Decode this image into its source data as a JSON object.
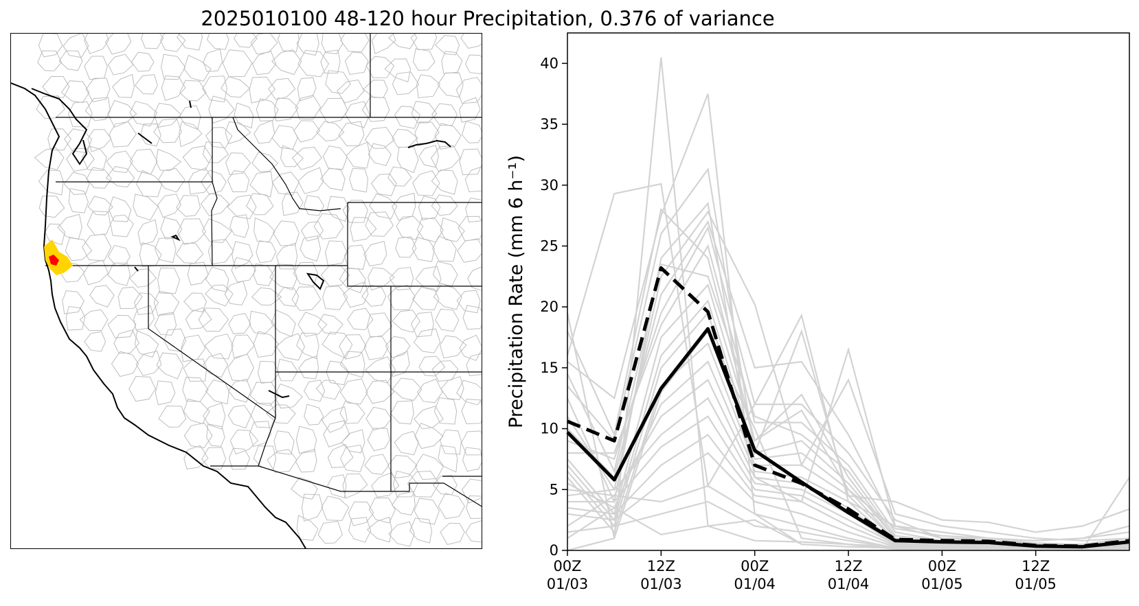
{
  "title": "2025010100 48-120 hour Precipitation, 0.376 of variance",
  "map": {
    "region": "Western United States",
    "basin_outline_color": "#bdbdbd",
    "state_line_color": "#000000",
    "highlight_colors": [
      "#ffd400",
      "#ff0000"
    ]
  },
  "chart_data": {
    "type": "line",
    "title": "2025010100 48-120 hour Precipitation, 0.376 of variance",
    "xlabel": "",
    "ylabel": "Precipitation Rate (mm 6 h⁻¹)",
    "ylim": [
      0,
      42.5
    ],
    "yticks": [
      0,
      5,
      10,
      15,
      20,
      25,
      30,
      35,
      40
    ],
    "x": [
      0,
      6,
      12,
      18,
      24,
      30,
      36,
      42,
      48,
      54,
      60,
      66,
      72
    ],
    "xlim": [
      0,
      72
    ],
    "xtick_positions": [
      0,
      12,
      24,
      36,
      48,
      60
    ],
    "xtick_labels": [
      [
        "00Z",
        "01/03"
      ],
      [
        "12Z",
        "01/03"
      ],
      [
        "00Z",
        "01/04"
      ],
      [
        "12Z",
        "01/04"
      ],
      [
        "00Z",
        "01/05"
      ],
      [
        "12Z",
        "01/05"
      ]
    ],
    "grid": false,
    "legend": "none",
    "ensemble_color": "#d3d3d3",
    "ensemble_members": [
      [
        19.5,
        1.0,
        40.5,
        2.0,
        2.5,
        0.5,
        0.3,
        0.2,
        0.1,
        0.1,
        0.1,
        0.1,
        0.3
      ],
      [
        16.0,
        29.3,
        30.1,
        5.3,
        12.0,
        19.3,
        4.0,
        2.0,
        1.5,
        1.0,
        0.8,
        1.0,
        1.5
      ],
      [
        15.5,
        12.5,
        27.5,
        37.5,
        3.0,
        0.5,
        0.3,
        0.2,
        0.1,
        0.1,
        0.1,
        0.1,
        6.0
      ],
      [
        13.5,
        9.0,
        26.0,
        31.3,
        8.0,
        18.0,
        4.5,
        4.0,
        2.5,
        2.3,
        1.5,
        2.0,
        3.4
      ],
      [
        12.5,
        4.0,
        24.0,
        28.5,
        6.0,
        4.0,
        16.5,
        2.0,
        1.0,
        1.0,
        0.5,
        0.5,
        1.0
      ],
      [
        11.0,
        5.0,
        22.5,
        27.8,
        20.2,
        7.0,
        14.0,
        3.0,
        2.0,
        1.5,
        1.0,
        0.8,
        1.0
      ],
      [
        10.0,
        6.0,
        21.0,
        27.0,
        15.0,
        15.5,
        9.5,
        2.0,
        1.5,
        1.0,
        0.8,
        1.0,
        2.0
      ],
      [
        9.0,
        7.5,
        19.5,
        26.5,
        12.0,
        12.0,
        8.0,
        2.5,
        1.0,
        0.8,
        0.5,
        0.5,
        1.0
      ],
      [
        8.0,
        8.0,
        18.5,
        25.0,
        10.5,
        10.5,
        7.0,
        1.5,
        0.8,
        0.6,
        0.4,
        0.4,
        0.8
      ],
      [
        7.5,
        3.0,
        17.5,
        21.8,
        9.0,
        12.8,
        6.0,
        1.0,
        0.5,
        0.5,
        0.3,
        0.3,
        0.5
      ],
      [
        7.0,
        2.5,
        16.0,
        20.5,
        8.0,
        9.0,
        5.5,
        1.0,
        0.5,
        0.5,
        0.3,
        0.3,
        0.5
      ],
      [
        6.5,
        2.0,
        15.0,
        19.5,
        7.5,
        8.0,
        5.0,
        0.8,
        0.5,
        0.4,
        0.3,
        0.3,
        0.5
      ],
      [
        6.0,
        1.5,
        13.5,
        17.0,
        7.0,
        7.0,
        4.5,
        0.8,
        0.4,
        0.4,
        0.2,
        0.2,
        0.4
      ],
      [
        5.5,
        3.5,
        12.0,
        15.5,
        6.5,
        6.0,
        4.0,
        0.6,
        0.4,
        0.3,
        0.2,
        0.2,
        0.3
      ],
      [
        5.0,
        4.5,
        11.0,
        14.0,
        6.0,
        5.5,
        3.5,
        0.6,
        0.3,
        0.3,
        0.2,
        0.2,
        0.3
      ],
      [
        4.5,
        5.0,
        9.5,
        12.5,
        5.5,
        5.0,
        3.0,
        0.5,
        0.3,
        0.2,
        0.1,
        0.2,
        0.3
      ],
      [
        4.0,
        4.0,
        8.5,
        11.0,
        5.0,
        4.5,
        2.5,
        0.5,
        0.2,
        0.2,
        0.1,
        0.1,
        0.2
      ],
      [
        3.5,
        3.0,
        7.0,
        9.5,
        4.5,
        4.0,
        2.0,
        0.4,
        0.2,
        0.2,
        0.1,
        0.1,
        0.2
      ],
      [
        3.0,
        2.5,
        5.5,
        8.0,
        4.0,
        3.0,
        1.5,
        0.3,
        0.1,
        0.1,
        0.1,
        0.1,
        0.2
      ],
      [
        2.0,
        4.5,
        4.0,
        5.3,
        3.0,
        2.0,
        1.0,
        0.2,
        0.1,
        0.1,
        0.1,
        0.1,
        0.1
      ],
      [
        1.5,
        2.0,
        3.0,
        4.0,
        2.0,
        1.5,
        0.8,
        0.2,
        0.1,
        0.1,
        0.1,
        0.1,
        0.1
      ],
      [
        1.0,
        3.5,
        1.3,
        2.0,
        0.8,
        0.7,
        0.5,
        0.1,
        0.1,
        0.1,
        0.1,
        0.1,
        0.1
      ],
      [
        0.0,
        1.0,
        13.0,
        18.0,
        10.0,
        1.0,
        0.5,
        0.3,
        0.2,
        0.1,
        0.1,
        0.1,
        0.2
      ],
      [
        18.0,
        9.5,
        28.0,
        24.0,
        9.0,
        11.5,
        5.0,
        1.8,
        1.2,
        1.0,
        0.6,
        0.5,
        0.8
      ],
      [
        14.5,
        6.5,
        23.5,
        22.5,
        11.0,
        9.5,
        6.5,
        1.2,
        0.8,
        0.7,
        0.4,
        0.4,
        0.6
      ]
    ],
    "series": [
      {
        "style": "solid",
        "color": "#000000",
        "values": [
          9.7,
          5.8,
          13.3,
          18.2,
          8.2,
          5.6,
          3.1,
          0.8,
          0.7,
          0.65,
          0.35,
          0.3,
          0.7
        ]
      },
      {
        "style": "dashed",
        "color": "#000000",
        "values": [
          10.6,
          9.0,
          23.2,
          19.6,
          7.0,
          5.5,
          3.4,
          0.9,
          0.8,
          0.75,
          0.4,
          0.35,
          0.8
        ]
      }
    ]
  }
}
